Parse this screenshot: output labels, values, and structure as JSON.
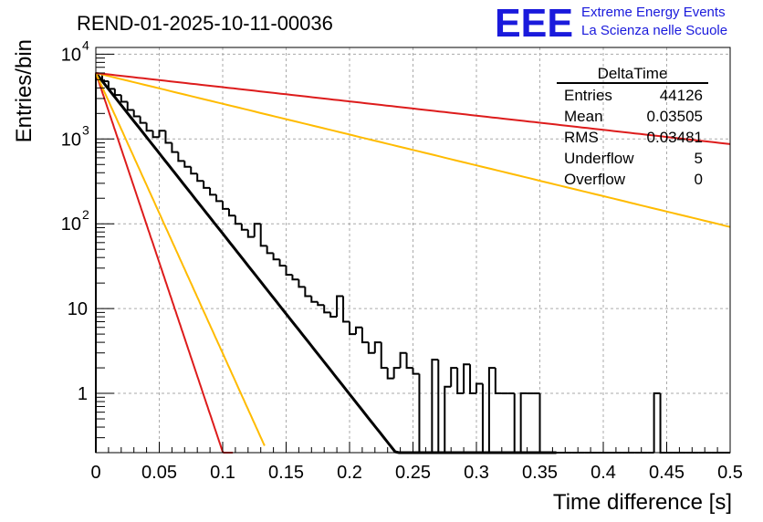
{
  "chart_data": {
    "type": "histogram",
    "title": "REND-01-2025-10-11-00036",
    "xlabel": "Time difference [s]",
    "ylabel": "Entries/bin",
    "xlim": [
      0,
      0.5
    ],
    "ylim": [
      0.2,
      12000
    ],
    "yscale": "log",
    "grid": true,
    "x_ticks": [
      "0",
      "0.05",
      "0.1",
      "0.15",
      "0.2",
      "0.25",
      "0.3",
      "0.35",
      "0.4",
      "0.45",
      "0.5"
    ],
    "y_ticks": [
      {
        "value": 1,
        "base": "1",
        "exp": ""
      },
      {
        "value": 10,
        "base": "10",
        "exp": ""
      },
      {
        "value": 100,
        "base": "10",
        "exp": "2"
      },
      {
        "value": 1000,
        "base": "10",
        "exp": "3"
      },
      {
        "value": 10000,
        "base": "10",
        "exp": "4"
      }
    ],
    "histogram": {
      "name": "DeltaTime",
      "color": "#000000",
      "bin_width": 0.005,
      "bin_start": 0,
      "counts": [
        5900,
        4800,
        3900,
        3300,
        2750,
        2200,
        1850,
        1550,
        1250,
        1050,
        1250,
        900,
        700,
        550,
        470,
        390,
        320,
        265,
        220,
        185,
        150,
        125,
        100,
        85,
        70,
        100,
        55,
        45,
        38,
        32,
        25,
        22,
        18,
        14,
        12,
        11,
        9,
        8,
        14,
        7,
        5,
        6,
        4,
        3,
        4,
        2,
        1.5,
        2,
        3,
        2,
        1.7,
        0.2,
        0.2,
        2.5,
        0.2,
        1.2,
        2,
        1,
        2.2,
        1,
        1.3,
        0.2,
        2,
        1,
        1,
        1,
        0,
        1,
        1,
        1,
        0,
        0,
        0,
        0,
        0,
        0,
        0,
        0,
        0,
        0,
        0,
        0,
        0,
        0,
        0,
        0,
        0,
        0,
        1,
        0,
        0,
        0,
        0,
        0,
        0,
        0,
        0,
        0,
        0,
        0
      ]
    },
    "fits": [
      {
        "name": "fit-black",
        "color": "#000000",
        "amplitude": 6000,
        "slope": 43.6,
        "x_range": [
          0,
          0.363
        ]
      },
      {
        "name": "fit-red-steep",
        "color": "#dd1c1c",
        "amplitude": 6000,
        "slope": 102.9,
        "x_range": [
          0,
          0.108
        ]
      },
      {
        "name": "fit-orange-steep",
        "color": "#ffbb00",
        "amplitude": 6000,
        "slope": 76.1,
        "x_range": [
          0,
          0.133
        ]
      },
      {
        "name": "fit-orange-flat",
        "color": "#ffbb00",
        "amplitude": 6000,
        "slope": 8.36,
        "x_range": [
          0,
          0.5
        ]
      },
      {
        "name": "fit-red-flat",
        "color": "#dd1c1c",
        "amplitude": 6000,
        "slope": 3.86,
        "x_range": [
          0,
          0.5
        ]
      }
    ]
  },
  "stats_box": {
    "title": "DeltaTime",
    "rows": [
      {
        "label": "Entries",
        "value": "44126"
      },
      {
        "label": "Mean",
        "value": "0.03505"
      },
      {
        "label": "RMS",
        "value": "0.03481"
      },
      {
        "label": "Underflow",
        "value": "5"
      },
      {
        "label": "Overflow",
        "value": "0"
      }
    ]
  },
  "brand": {
    "logo": "EEE",
    "line1": "Extreme Energy Events",
    "line2": "La Scienza nelle Scuole",
    "color": "#1a1adc"
  }
}
